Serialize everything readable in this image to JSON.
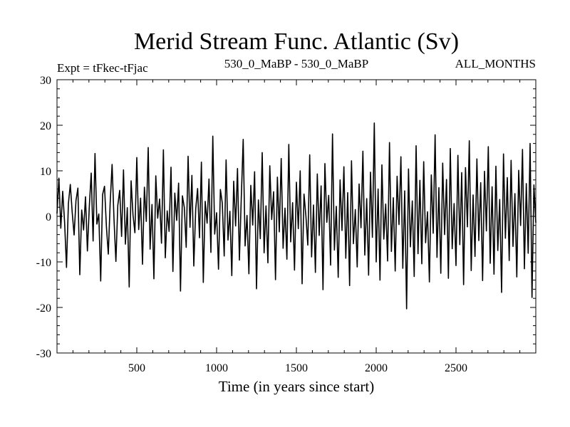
{
  "chart_data": {
    "type": "line",
    "title": "Merid Stream Func. Atlantic (Sv)",
    "subtitle_left": "Expt = tFkec-tFjac",
    "subtitle_center": "530_0_MaBP - 530_0_MaBP",
    "subtitle_right": "ALL_MONTHS",
    "xlabel": "Time (in years since start)",
    "ylabel": "",
    "xlim": [
      0,
      3000
    ],
    "ylim": [
      -30,
      30
    ],
    "xticks": [
      500,
      1000,
      1500,
      2000,
      2500
    ],
    "xtick_labels": [
      "500",
      "1000",
      "1500",
      "2000",
      "2500"
    ],
    "yticks": [
      -30,
      -20,
      -10,
      0,
      10,
      20,
      30
    ],
    "ytick_labels": [
      "-30",
      "-20",
      "-10",
      "0",
      "10",
      "20",
      "30"
    ],
    "grid": false,
    "series": [
      {
        "color": "#000000",
        "x_start": 0,
        "x_step": 1,
        "values": [
          0.6,
          8.4,
          -2.6,
          5.5,
          -1.3,
          -11.2,
          2.8,
          7.0,
          0.9,
          -4.1,
          3.5,
          6.2,
          -12.8,
          1.4,
          -3.0,
          4.3,
          -7.6,
          2.1,
          9.5,
          -5.4,
          13.8,
          -1.7,
          0.5,
          -14.2,
          4.8,
          6.6,
          -2.2,
          -8.3,
          3.1,
          11.4,
          -0.6,
          -9.9,
          2.4,
          5.7,
          -4.4,
          10.2,
          -6.1,
          1.9,
          -15.5,
          7.8,
          0.3,
          -3.6,
          12.9,
          -2.9,
          4.0,
          -10.5,
          6.4,
          -1.1,
          15.1,
          -7.2,
          2.6,
          -13.7,
          8.9,
          -0.4,
          3.8,
          -5.9,
          14.6,
          -9.1,
          1.2,
          -3.3,
          10.8,
          -12.1,
          5.1,
          -0.9,
          7.3,
          -16.4,
          4.5,
          2.0,
          -6.8,
          13.2,
          -2.4,
          9.0,
          -10.9,
          1.6,
          6.1,
          -4.7,
          11.9,
          -14.5,
          3.3,
          -1.5,
          8.2,
          -7.9,
          17.6,
          -3.9,
          0.8,
          -11.6,
          5.9,
          2.9,
          -8.7,
          12.4,
          -5.2,
          1.1,
          -13.0,
          7.7,
          -2.1,
          10.5,
          -9.6,
          4.2,
          16.9,
          -6.5,
          0.2,
          -12.6,
          6.8,
          -1.9,
          9.8,
          -15.9,
          3.6,
          -4.9,
          14.0,
          -8.0,
          2.3,
          -10.2,
          11.1,
          -0.7,
          5.4,
          -13.9,
          8.6,
          -3.4,
          12.7,
          -7.0,
          1.8,
          -9.4,
          15.8,
          -5.6,
          3.0,
          -11.8,
          7.5,
          -2.7,
          10.0,
          -14.8,
          4.9,
          0.1,
          -6.3,
          13.5,
          -8.9,
          2.5,
          -12.3,
          9.3,
          -4.2,
          6.7,
          -16.1,
          11.6,
          -1.3,
          4.6,
          -10.7,
          18.1,
          -7.4,
          2.2,
          -13.4,
          8.0,
          -3.1,
          10.9,
          -9.2,
          5.2,
          -15.2,
          12.2,
          -6.0,
          1.5,
          -11.1,
          7.1,
          -2.5,
          14.3,
          -8.5,
          3.9,
          -12.9,
          9.7,
          -4.6,
          20.5,
          -10.0,
          6.0,
          -14.0,
          11.3,
          -5.0,
          2.7,
          -9.8,
          16.2,
          -7.7,
          4.1,
          -12.0,
          8.8,
          -1.8,
          13.1,
          -11.4,
          5.6,
          -20.3,
          10.4,
          -6.7,
          3.4,
          -13.2,
          15.5,
          -8.2,
          7.9,
          -10.4,
          12.0,
          -5.8,
          1.0,
          -14.4,
          9.1,
          -3.7,
          17.9,
          -9.0,
          6.3,
          -12.5,
          11.7,
          -4.0,
          8.1,
          -13.6,
          14.9,
          -7.1,
          2.8,
          -10.8,
          13.4,
          -6.2,
          9.6,
          -15.0,
          10.7,
          -2.3,
          16.6,
          -11.9,
          4.7,
          -8.8,
          12.6,
          -5.3,
          7.4,
          -14.1,
          9.9,
          -3.2,
          15.3,
          -10.3,
          6.5,
          -12.7,
          11.0,
          -7.5,
          3.7,
          -16.7,
          13.7,
          -4.8,
          8.5,
          -9.7,
          12.3,
          -6.6,
          5.0,
          -13.3,
          10.1,
          -2.0,
          14.7,
          -11.5,
          7.2,
          -8.1,
          16.0,
          -17.8,
          6.9,
          -1.4
        ]
      }
    ]
  }
}
